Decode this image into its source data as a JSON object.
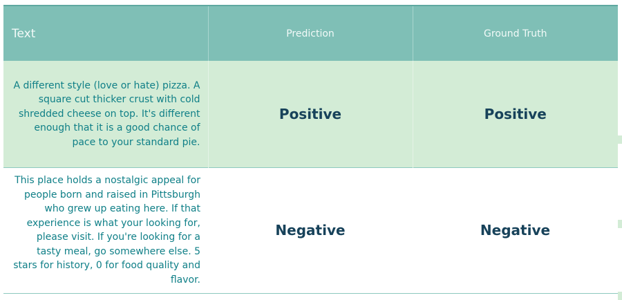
{
  "table": {
    "headers": {
      "text": "Text",
      "prediction": "Prediction",
      "ground_truth": "Ground Truth"
    },
    "rows": [
      {
        "text": "A different style (love or hate) pizza. A square cut thicker crust with cold shredded cheese on top. It's different enough that it is a good chance of pace to your standard pie.",
        "prediction": "Positive",
        "ground_truth": "Positive"
      },
      {
        "text": "This place holds a nostalgic appeal for people born and raised in Pittsburgh who grew up eating here. If that experience is what your looking for, please visit. If you're looking for a tasty meal, go somewhere else. 5 stars for history, 0 for food quality and flavor.",
        "prediction": "Negative",
        "ground_truth": "Negative"
      }
    ]
  },
  "colors": {
    "header_bg": "#7fbfb6",
    "row_highlight_bg": "#d3ecd6",
    "review_text": "#0f7f87",
    "label_text": "#17425a"
  }
}
